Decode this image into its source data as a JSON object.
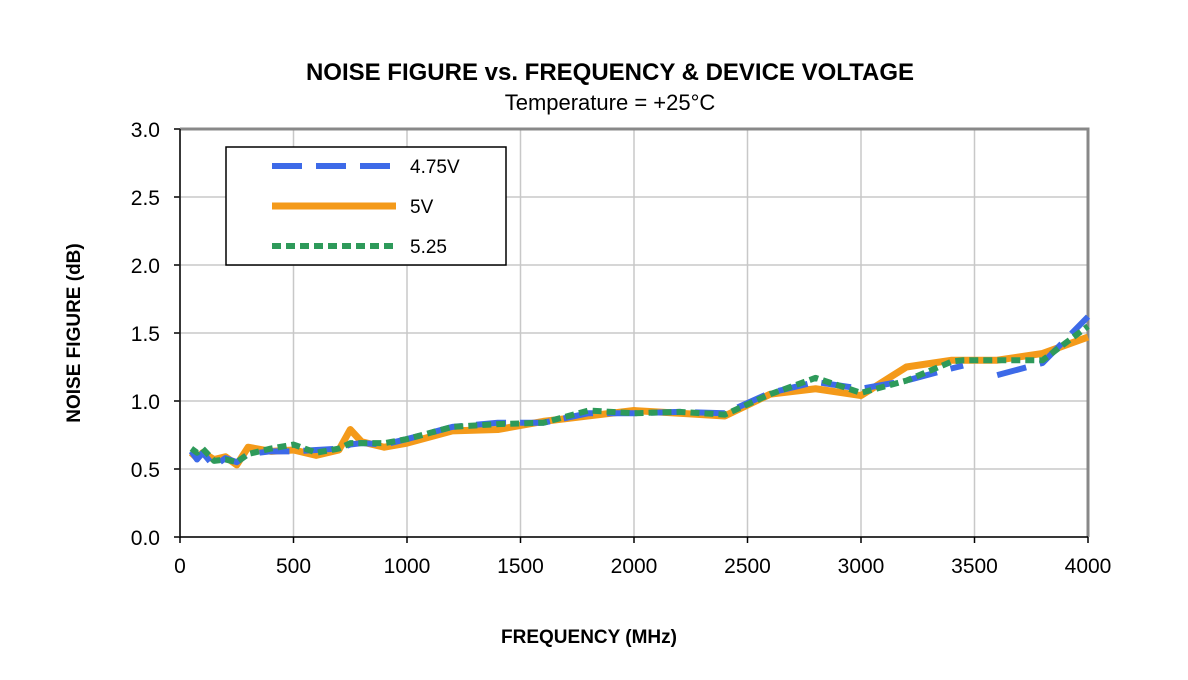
{
  "chart_data": {
    "type": "line",
    "title": "NOISE FIGURE vs. FREQUENCY & DEVICE VOLTAGE",
    "subtitle": "Temperature = +25°C",
    "x_label": "FREQUENCY (MHz)",
    "y_label": "NOISE FIGURE (dB)",
    "x": [
      50,
      75,
      100,
      150,
      200,
      250,
      300,
      400,
      500,
      600,
      700,
      750,
      800,
      900,
      1000,
      1200,
      1400,
      1600,
      1800,
      2000,
      2200,
      2400,
      2600,
      2800,
      3000,
      3200,
      3400,
      3450,
      3500,
      3600,
      3800,
      4000
    ],
    "series": [
      {
        "name": "4.75V",
        "color": "#3d6ae8",
        "values": [
          0.63,
          0.57,
          0.62,
          0.52,
          0.58,
          0.55,
          0.61,
          0.63,
          0.63,
          0.64,
          0.65,
          0.68,
          0.69,
          0.68,
          0.72,
          0.81,
          0.84,
          0.84,
          0.91,
          0.91,
          0.92,
          0.91,
          1.06,
          1.14,
          1.09,
          1.15,
          1.24,
          1.26,
          null,
          1.19,
          1.28,
          1.62
        ]
      },
      {
        "name": "5V",
        "color": "#f49a1a",
        "values": [
          0.62,
          0.58,
          0.62,
          0.57,
          0.59,
          0.53,
          0.66,
          0.63,
          0.64,
          0.6,
          0.64,
          0.79,
          0.7,
          0.66,
          0.69,
          0.78,
          0.79,
          0.85,
          0.89,
          0.93,
          0.91,
          0.89,
          1.05,
          1.09,
          1.04,
          1.25,
          1.3,
          1.3,
          1.3,
          1.3,
          1.35,
          1.47
        ]
      },
      {
        "name": "5.25",
        "color": "#2e9a5a",
        "values": [
          0.65,
          0.62,
          0.65,
          0.56,
          0.57,
          0.55,
          0.61,
          0.65,
          0.68,
          0.62,
          0.65,
          0.69,
          0.69,
          0.69,
          0.72,
          0.81,
          0.83,
          0.84,
          0.93,
          0.91,
          0.92,
          0.9,
          1.05,
          1.17,
          1.06,
          1.15,
          1.29,
          1.3,
          1.3,
          1.3,
          1.3,
          1.55
        ]
      }
    ],
    "xlim": [
      0,
      4000
    ],
    "xticks": [
      0,
      500,
      1000,
      1500,
      2000,
      2500,
      3000,
      3500,
      4000
    ],
    "ylim": [
      0,
      3
    ],
    "yticks": [
      {
        "value": 0,
        "label": "0.0"
      },
      0.5,
      {
        "value": 1,
        "label": "1.0"
      },
      1.5,
      {
        "value": 2,
        "label": "2.0"
      },
      2.5,
      {
        "value": 3,
        "label": "3.0"
      }
    ],
    "grid": true,
    "legend": "upper left"
  }
}
